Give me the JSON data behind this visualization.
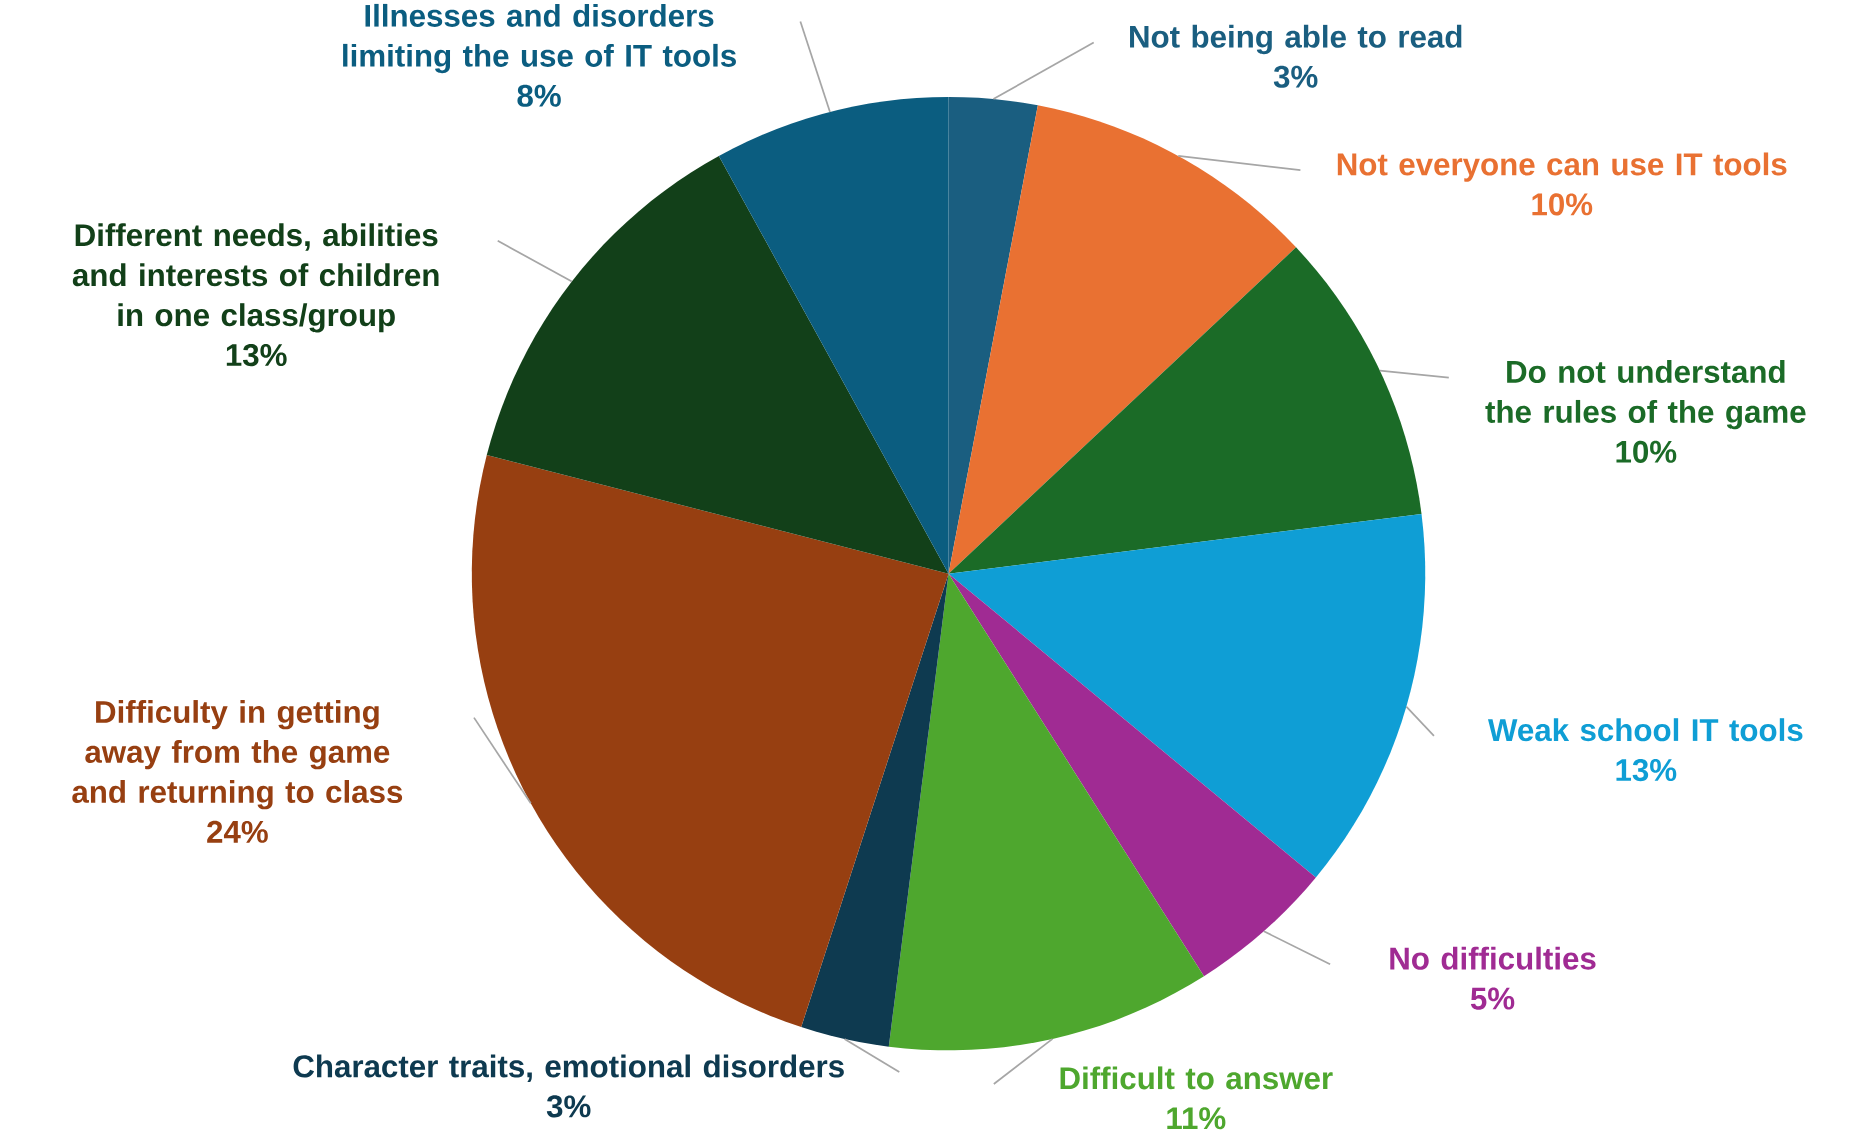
{
  "chart_data": {
    "type": "pie",
    "categories": [
      "Not being able to read",
      "Not everyone can use IT tools",
      "Do not understand the rules of the game",
      "Weak school IT tools",
      "No difficulties",
      "Difficult to answer",
      "Character traits, emotional disorders",
      "Difficulty in getting away from the game and returning to class",
      "Different needs, abilities and interests of children in one class/group",
      "Illnesses and disorders limiting the use of IT tools"
    ],
    "values": [
      3,
      10,
      10,
      13,
      5,
      11,
      3,
      24,
      13,
      8
    ],
    "value_labels": [
      "3%",
      "10%",
      "10%",
      "13%",
      "5%",
      "11%",
      "3%",
      "24%",
      "13%",
      "8%"
    ],
    "colors": [
      "#1a5e80",
      "#e97132",
      "#1b6b27",
      "#0f9ed5",
      "#a02b93",
      "#4ea72e",
      "#0e3a50",
      "#973f11",
      "#124019",
      "#0b5d80"
    ]
  }
}
